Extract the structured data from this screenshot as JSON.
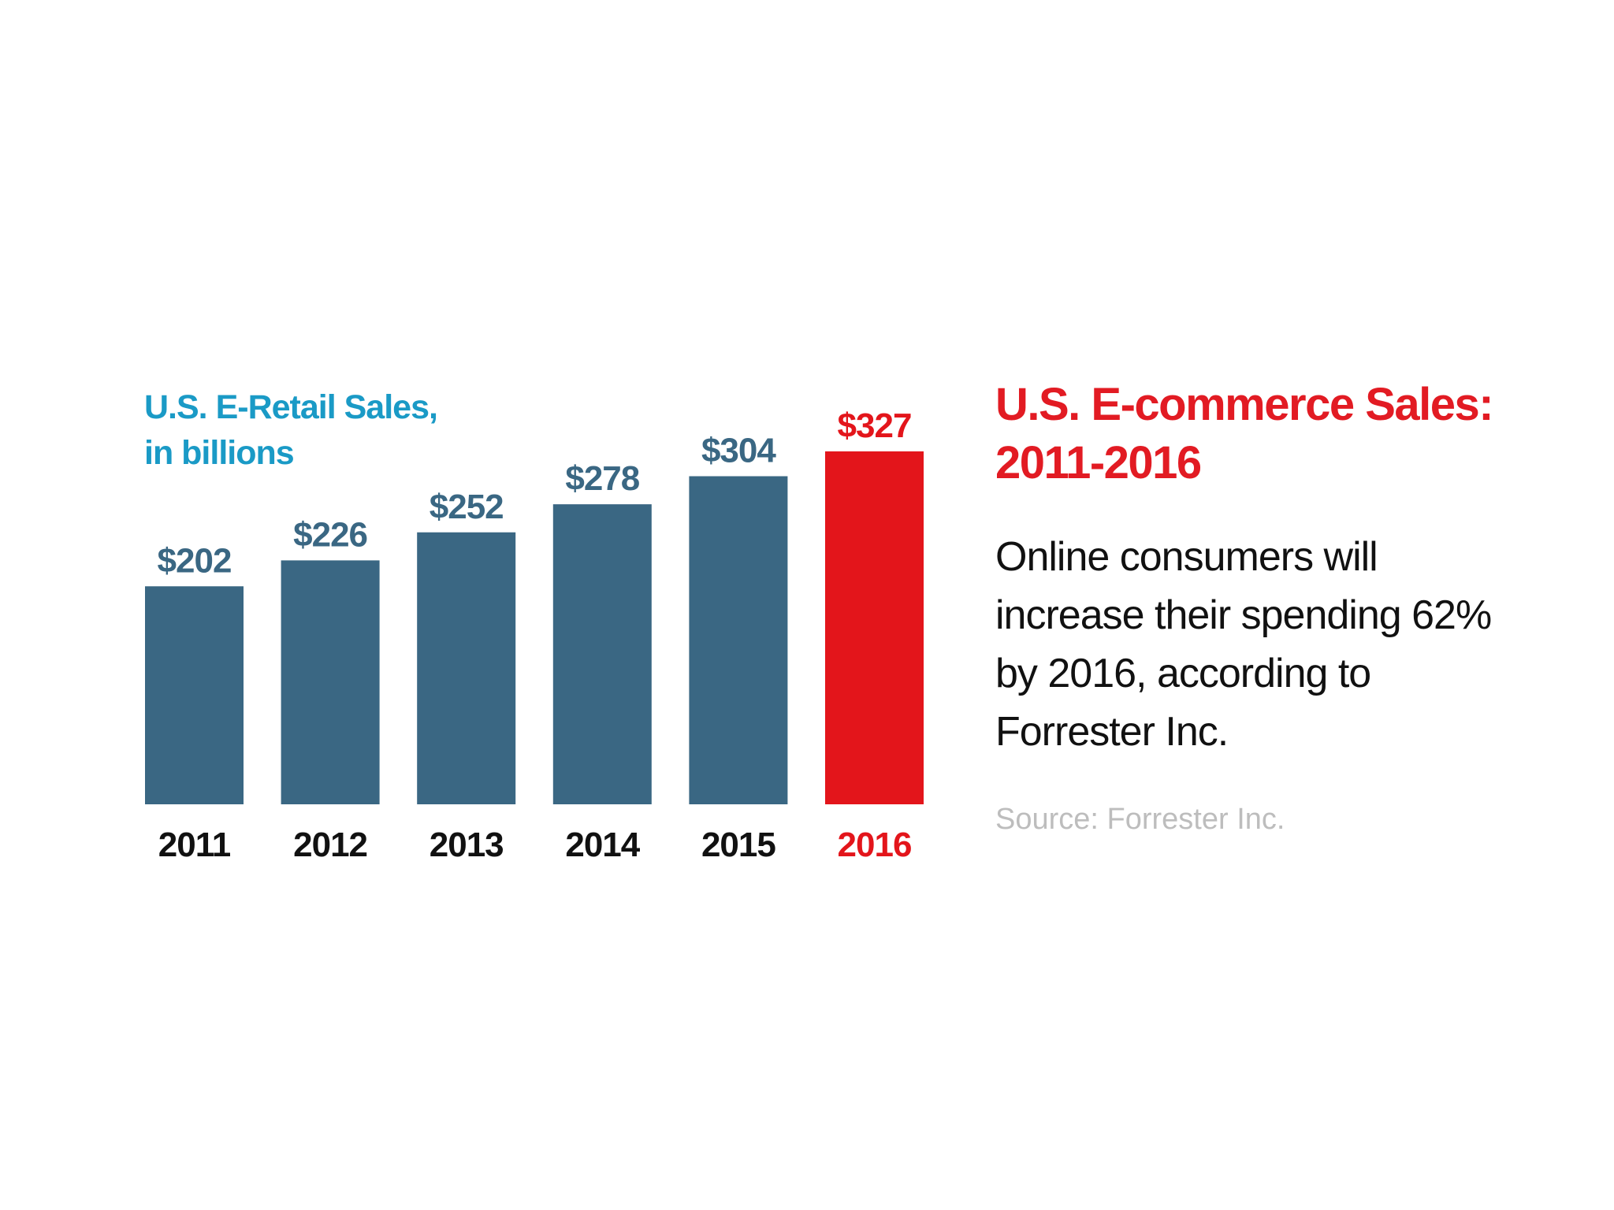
{
  "chart_data": {
    "type": "bar",
    "title": "U.S. E-Retail Sales,\nin billions",
    "categories": [
      "2011",
      "2012",
      "2013",
      "2014",
      "2015",
      "2016"
    ],
    "values": [
      202,
      226,
      252,
      278,
      304,
      327
    ],
    "data_labels": [
      "$202",
      "$226",
      "$252",
      "$278",
      "$304",
      "$327"
    ],
    "highlight_index": 5,
    "ylim": [
      0,
      327
    ],
    "grid": false,
    "colors": {
      "bar": "#3a6783",
      "highlight": "#e3151b",
      "label": "#3a6783",
      "tick": "#111111",
      "title": "#1a9ac6"
    }
  },
  "panel": {
    "title": "U.S. E-commerce Sales:\n2011-2016",
    "body": "Online consumers will increase their spending 62% by 2016, according to Forrester Inc.",
    "source": "Source: Forrester Inc."
  }
}
